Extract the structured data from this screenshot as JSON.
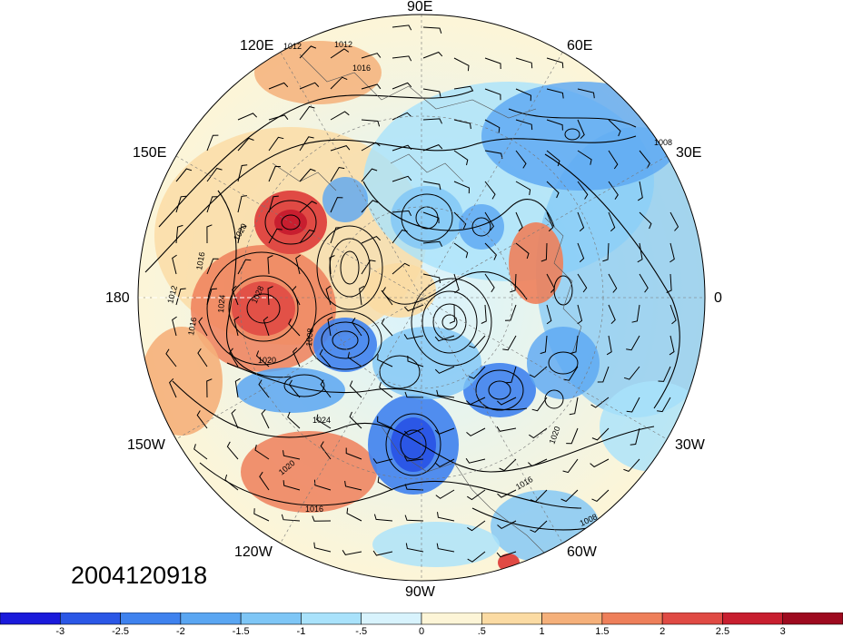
{
  "datetime_label": "2004120918",
  "longitude_labels": [
    "90E",
    "60E",
    "120E",
    "30E",
    "150E",
    "0",
    "180",
    "30W",
    "150W",
    "60W",
    "120W",
    "90W"
  ],
  "isobar_labels": [
    "1012",
    "1012",
    "1016",
    "1008",
    "1020",
    "1016",
    "1012",
    "1024",
    "1028",
    "1016",
    "1020",
    "1008",
    "1024",
    "1020",
    "1016",
    "1020",
    "1016",
    "1008"
  ],
  "colorbar": {
    "ticks": [
      "-3",
      "-2.5",
      "-2",
      "-1.5",
      "-1",
      "-.5",
      "0",
      ".5",
      "1",
      "1.5",
      "2",
      "2.5",
      "3"
    ],
    "colors": [
      "#1a1adb",
      "#2b57e6",
      "#3f82ee",
      "#5aa6f2",
      "#7ec6f6",
      "#a9e2fb",
      "#d8f3fd",
      "#fdf5d7",
      "#fbdba3",
      "#f5b07a",
      "#ee7f5a",
      "#e04a44",
      "#c81e2f",
      "#9e0a1f"
    ]
  },
  "field": {
    "projection": "north-polar-stereographic",
    "shading_range": [
      -3,
      3
    ],
    "contour_units": "hPa"
  }
}
